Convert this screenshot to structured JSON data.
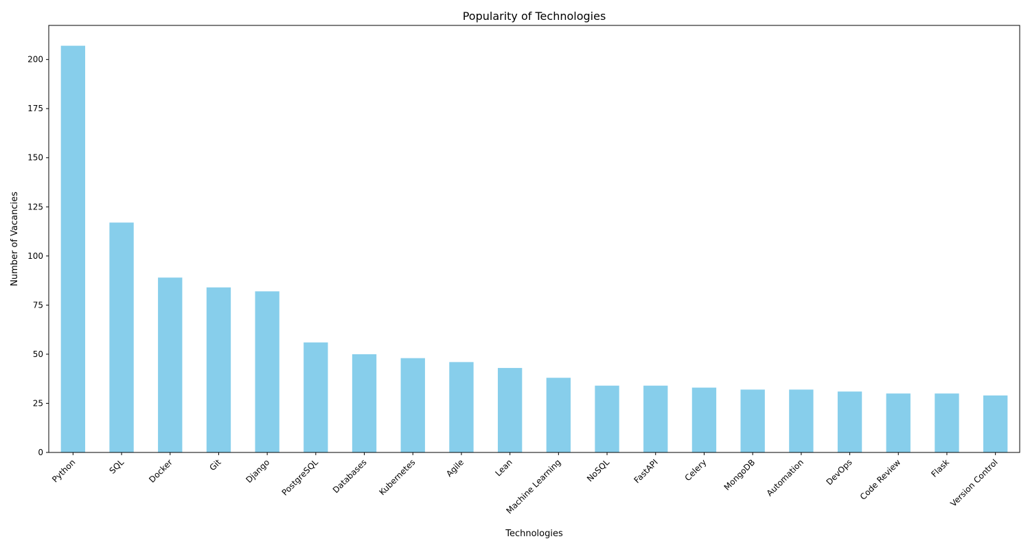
{
  "chart_data": {
    "type": "bar",
    "title": "Popularity of Technologies",
    "xlabel": "Technologies",
    "ylabel": "Number of Vacancies",
    "categories": [
      "Python",
      "SQL",
      "Docker",
      "Git",
      "Django",
      "PostgreSQL",
      "Databases",
      "Kubernetes",
      "Agile",
      "Lean",
      "Machine Learning",
      "NoSQL",
      "FastAPI",
      "Celery",
      "MongoDB",
      "Automation",
      "DevOps",
      "Code Review",
      "Flask",
      "Version Control"
    ],
    "values": [
      207,
      117,
      89,
      84,
      82,
      56,
      50,
      48,
      46,
      43,
      38,
      34,
      34,
      33,
      32,
      32,
      31,
      30,
      30,
      29
    ],
    "ylim": [
      0,
      217.35
    ],
    "yticks": [
      0,
      25,
      50,
      75,
      100,
      125,
      150,
      175,
      200
    ],
    "bar_color": "#87CEEB",
    "grid": false,
    "legend": "none"
  }
}
